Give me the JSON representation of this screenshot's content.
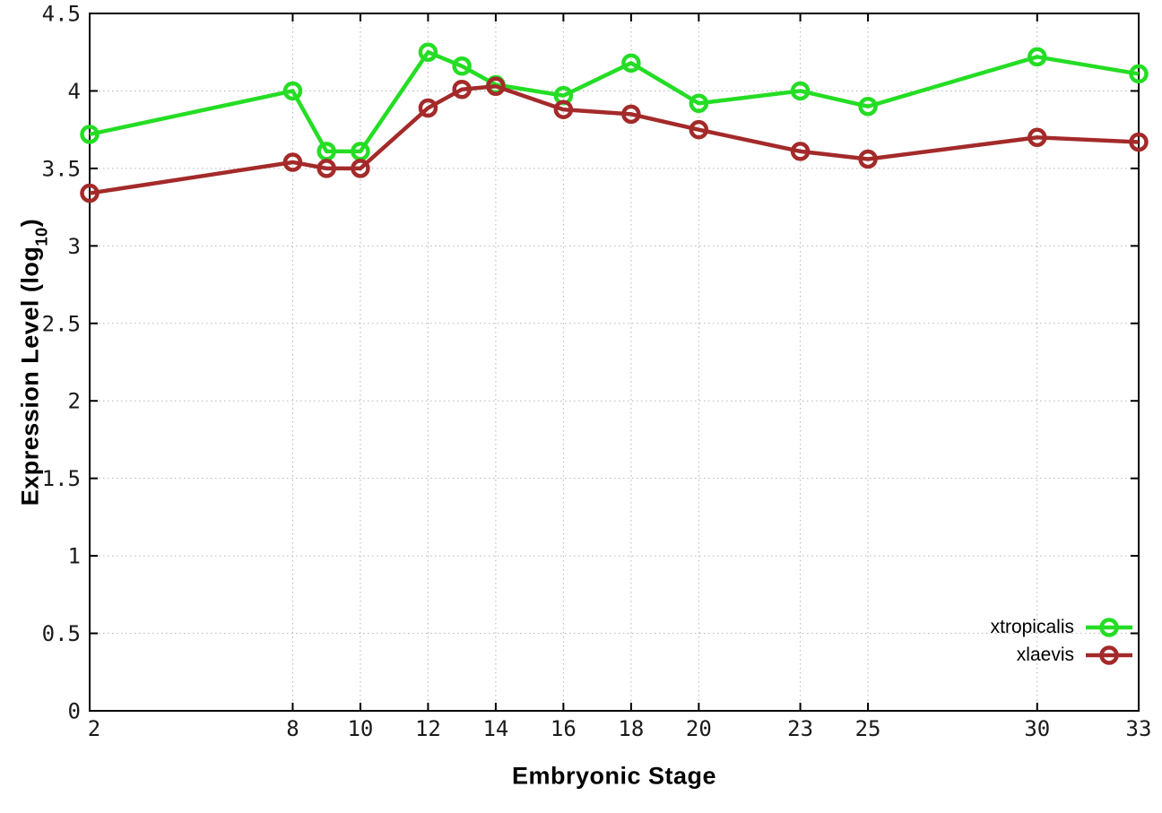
{
  "chart_data": {
    "type": "line",
    "title": "",
    "xlabel": "Embryonic Stage",
    "ylabel": {
      "prefix": "Expression Level (log",
      "sub": "10",
      "suffix": ")"
    },
    "xlim": [
      2,
      33
    ],
    "ylim": [
      0,
      4.5
    ],
    "grid": true,
    "legend_position": "bottom-right-inside",
    "x_ticks": [
      2,
      8,
      10,
      12,
      14,
      16,
      18,
      20,
      23,
      25,
      30,
      33
    ],
    "x_tick_labels": [
      "2",
      "8",
      "10",
      "12",
      "14",
      "16",
      "18",
      "20",
      "23",
      "25",
      "30",
      "33"
    ],
    "y_ticks": [
      0,
      0.5,
      1,
      1.5,
      2,
      2.5,
      3,
      3.5,
      4,
      4.5
    ],
    "y_tick_labels": [
      "0",
      "0.5",
      "1",
      "1.5",
      "2",
      "2.5",
      "3",
      "3.5",
      "4",
      "4.5"
    ],
    "x": [
      2,
      8,
      9,
      10,
      12,
      13,
      14,
      16,
      18,
      20,
      23,
      25,
      30,
      33
    ],
    "series": [
      {
        "name": "xtropicalis",
        "color": "#24dd24",
        "marker": "open-circle",
        "values": [
          3.72,
          4.0,
          3.61,
          3.61,
          4.25,
          4.16,
          4.04,
          3.97,
          4.18,
          3.92,
          4.0,
          3.9,
          4.22,
          4.11
        ]
      },
      {
        "name": "xlaevis",
        "color": "#a42a2a",
        "marker": "open-circle",
        "values": [
          3.34,
          3.54,
          3.5,
          3.5,
          3.89,
          4.01,
          4.03,
          3.88,
          3.85,
          3.75,
          3.61,
          3.56,
          3.7,
          3.67
        ]
      }
    ],
    "colors": {
      "background": "#ffffff",
      "axis": "#000000",
      "grid": "#b5b5b5",
      "tick_text": "#1a1a1a"
    }
  }
}
